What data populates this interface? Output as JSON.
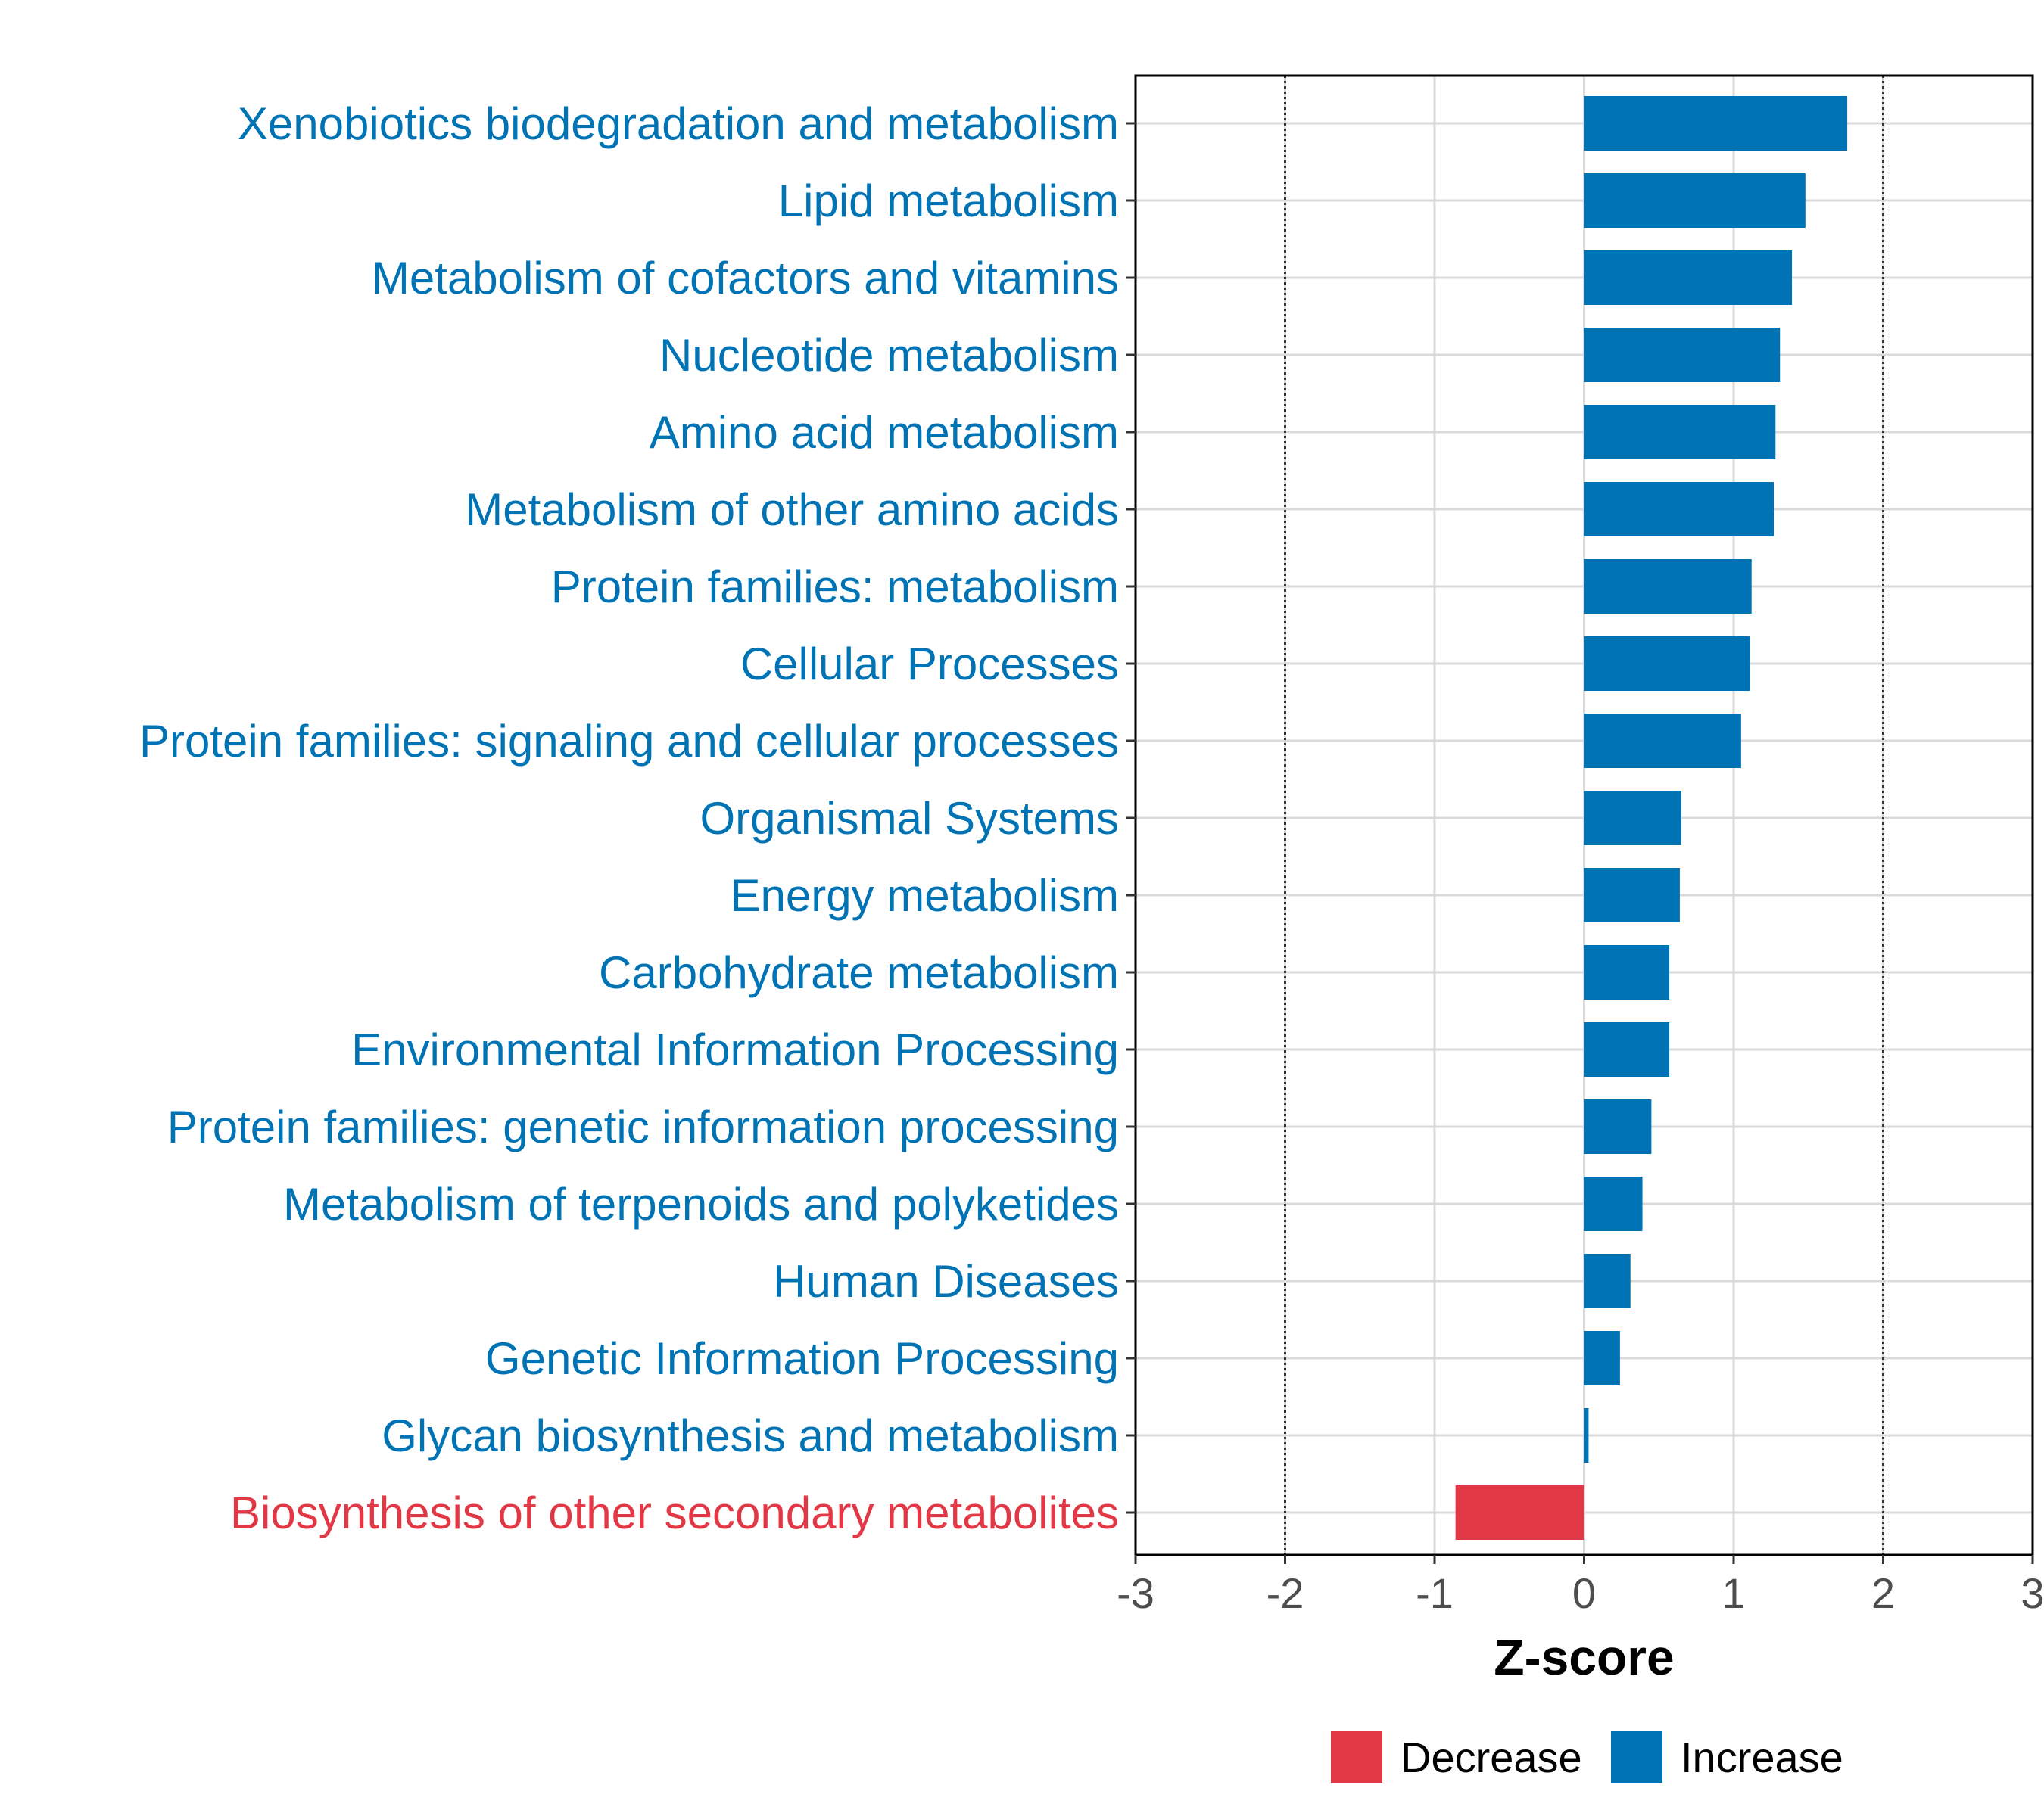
{
  "chart_data": {
    "type": "bar",
    "orientation": "horizontal",
    "title": "",
    "xlabel": "Z-score",
    "ylabel": "",
    "xlim": [
      -3,
      3
    ],
    "xticks": [
      "-3",
      "-2",
      "-1",
      "0",
      "1",
      "2",
      "3"
    ],
    "reference_lines": [
      -2,
      2
    ],
    "grid": true,
    "categories": [
      "Xenobiotics biodegradation and metabolism",
      "Lipid metabolism",
      "Metabolism of cofactors and vitamins",
      "Nucleotide metabolism",
      "Amino acid metabolism",
      "Metabolism of other amino acids",
      "Protein families: metabolism",
      "Cellular Processes",
      "Protein families: signaling and cellular processes",
      "Organismal Systems",
      "Energy metabolism",
      "Carbohydrate metabolism",
      "Environmental Information Processing",
      "Protein families: genetic information processing",
      "Metabolism of terpenoids and polyketides",
      "Human Diseases",
      "Genetic Information Processing",
      "Glycan biosynthesis and metabolism",
      "Biosynthesis of other secondary metabolites"
    ],
    "values": [
      1.76,
      1.48,
      1.39,
      1.31,
      1.28,
      1.27,
      1.12,
      1.11,
      1.05,
      0.65,
      0.64,
      0.57,
      0.57,
      0.45,
      0.39,
      0.31,
      0.24,
      0.03,
      -0.86
    ],
    "groups": [
      "Increase",
      "Increase",
      "Increase",
      "Increase",
      "Increase",
      "Increase",
      "Increase",
      "Increase",
      "Increase",
      "Increase",
      "Increase",
      "Increase",
      "Increase",
      "Increase",
      "Increase",
      "Increase",
      "Increase",
      "Increase",
      "Decrease"
    ],
    "legend": {
      "position": "bottom",
      "items": [
        {
          "label": "Decrease",
          "color": "#E23744"
        },
        {
          "label": "Increase",
          "color": "#0073B5"
        }
      ]
    }
  }
}
